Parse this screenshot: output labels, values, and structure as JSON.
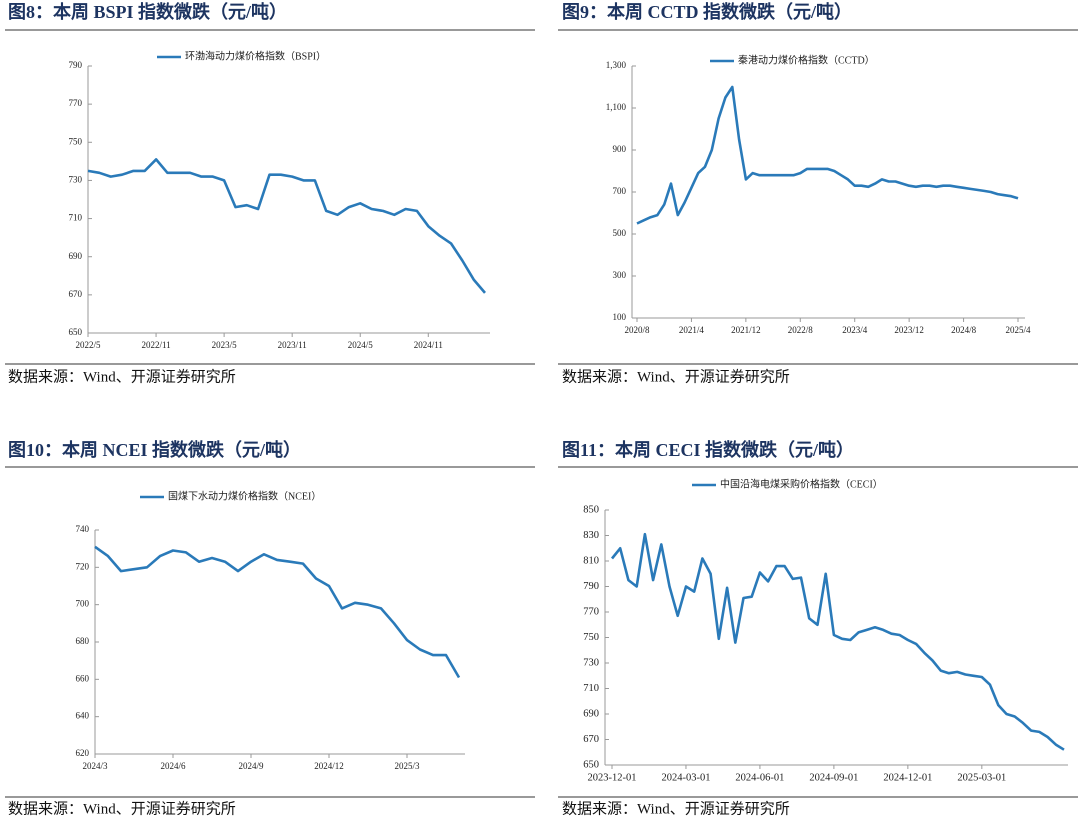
{
  "chart_data": [
    {
      "type": "line",
      "title": "图8：本周 BSPI 指数微跌（元/吨）",
      "source": "数据来源：Wind、开源证券研究所",
      "categories": [
        "2022/5",
        null,
        null,
        null,
        null,
        null,
        "2022/11",
        null,
        null,
        null,
        null,
        null,
        "2023/5",
        null,
        null,
        null,
        null,
        null,
        "2023/11",
        null,
        null,
        null,
        null,
        null,
        "2024/5",
        null,
        null,
        null,
        null,
        null,
        "2024/11",
        null,
        null,
        null,
        null,
        null
      ],
      "series": [
        {
          "name": "环渤海动力煤价格指数（BSPI）",
          "color": "#2a7ab9",
          "values": [
            735,
            734,
            732,
            733,
            735,
            735,
            741,
            734,
            734,
            734,
            732,
            732,
            730,
            716,
            717,
            715,
            733,
            733,
            732,
            730,
            730,
            714,
            712,
            716,
            718,
            715,
            714,
            712,
            715,
            714,
            706,
            701,
            697,
            688,
            678,
            671
          ]
        }
      ],
      "ylim": [
        650,
        790
      ],
      "yticks": [
        650,
        670,
        690,
        710,
        730,
        750,
        770,
        790
      ]
    },
    {
      "type": "line",
      "title": "图9：本周 CCTD 指数微跌（元/吨）",
      "source": "数据来源：Wind、开源证券研究所",
      "categories": [
        "2020/8",
        null,
        null,
        null,
        null,
        null,
        null,
        null,
        "2021/4",
        null,
        null,
        null,
        null,
        null,
        null,
        null,
        "2021/12",
        null,
        null,
        null,
        null,
        null,
        null,
        null,
        "2022/8",
        null,
        null,
        null,
        null,
        null,
        null,
        null,
        "2023/4",
        null,
        null,
        null,
        null,
        null,
        null,
        null,
        "2023/12",
        null,
        null,
        null,
        null,
        null,
        null,
        null,
        "2024/8",
        null,
        null,
        null,
        null,
        null,
        null,
        null,
        "2025/4"
      ],
      "series": [
        {
          "name": "秦港动力煤价格指数（CCTD）",
          "color": "#2a7ab9",
          "values": [
            550,
            565,
            580,
            590,
            640,
            740,
            590,
            650,
            720,
            790,
            820,
            900,
            1050,
            1150,
            1200,
            950,
            760,
            790,
            780,
            780,
            780,
            780,
            780,
            780,
            790,
            810,
            810,
            810,
            810,
            800,
            780,
            760,
            730,
            730,
            725,
            740,
            760,
            750,
            750,
            740,
            730,
            725,
            730,
            730,
            725,
            730,
            730,
            725,
            720,
            715,
            710,
            705,
            700,
            690,
            685,
            680,
            670
          ]
        }
      ],
      "ylim": [
        100,
        1300
      ],
      "yticks": [
        100,
        300,
        500,
        700,
        900,
        {
          "value": 1100,
          "label": "1,100"
        },
        {
          "value": 1300,
          "label": "1,300"
        }
      ]
    },
    {
      "type": "line",
      "title": "图10：本周 NCEI 指数微跌（元/吨）",
      "source": "数据来源：Wind、开源证券研究所",
      "categories": [
        "2024/3",
        null,
        null,
        null,
        null,
        null,
        "2024/6",
        null,
        null,
        null,
        null,
        null,
        "2024/9",
        null,
        null,
        null,
        null,
        null,
        "2024/12",
        null,
        null,
        null,
        null,
        null,
        "2025/3",
        null,
        null,
        null,
        null
      ],
      "series": [
        {
          "name": "国煤下水动力煤价格指数（NCEI）",
          "color": "#2a7ab9",
          "values": [
            731,
            726,
            718,
            719,
            720,
            726,
            729,
            728,
            723,
            725,
            723,
            718,
            723,
            727,
            724,
            723,
            722,
            714,
            710,
            698,
            701,
            700,
            698,
            690,
            681,
            676,
            673,
            673,
            661
          ]
        }
      ],
      "ylim": [
        620,
        740
      ],
      "yticks": [
        620,
        640,
        660,
        680,
        700,
        720,
        740
      ]
    },
    {
      "type": "line",
      "title": "图11：本周 CECI 指数微跌（元/吨）",
      "source": "数据来源：Wind、开源证券研究所",
      "categories": [
        "2023-12-01",
        null,
        null,
        null,
        null,
        null,
        null,
        null,
        null,
        "2024-03-01",
        null,
        null,
        null,
        null,
        null,
        null,
        null,
        null,
        "2024-06-01",
        null,
        null,
        null,
        null,
        null,
        null,
        null,
        null,
        "2024-09-01",
        null,
        null,
        null,
        null,
        null,
        null,
        null,
        null,
        "2024-12-01",
        null,
        null,
        null,
        null,
        null,
        null,
        null,
        null,
        "2025-03-01",
        null,
        null,
        null,
        null,
        null,
        null,
        null,
        null,
        null,
        null
      ],
      "series": [
        {
          "name": "中国沿海电煤采购价格指数（CECI）",
          "color": "#2a7ab9",
          "values": [
            812,
            820,
            795,
            790,
            831,
            795,
            823,
            790,
            767,
            790,
            786,
            812,
            800,
            749,
            789,
            746,
            781,
            782,
            801,
            794,
            806,
            806,
            796,
            797,
            765,
            760,
            800,
            752,
            749,
            748,
            754,
            756,
            758,
            756,
            753,
            752,
            748,
            745,
            738,
            732,
            724,
            722,
            723,
            721,
            720,
            719,
            713,
            697,
            690,
            688,
            683,
            677,
            676,
            672,
            666,
            662
          ]
        }
      ],
      "ylim": [
        650,
        850
      ],
      "yticks": [
        650,
        670,
        690,
        710,
        730,
        750,
        770,
        790,
        810,
        830,
        850
      ]
    }
  ]
}
